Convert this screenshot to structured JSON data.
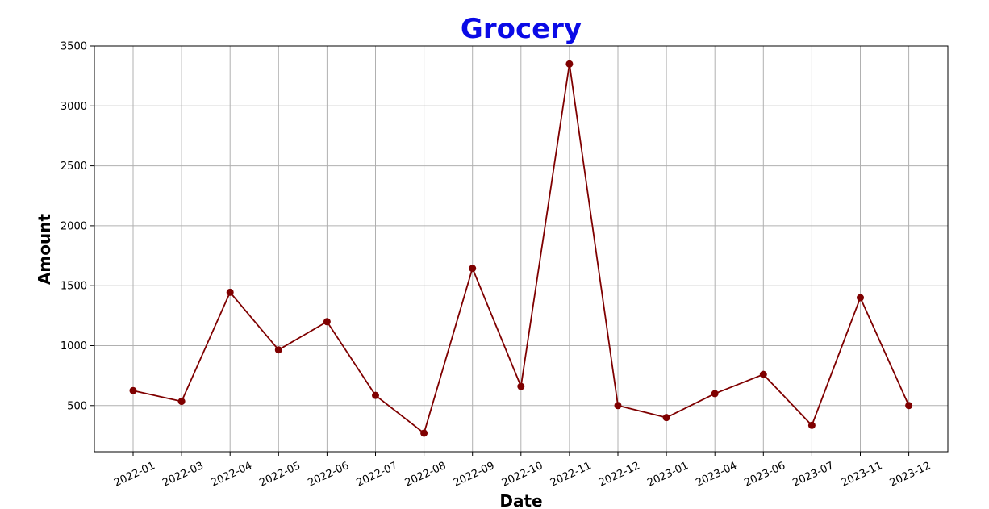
{
  "chart_data": {
    "type": "line",
    "title": "Grocery",
    "xlabel": "Date",
    "ylabel": "Amount",
    "title_color": "#0a0ae6",
    "line_color": "#7f0000",
    "marker": "circle",
    "grid": true,
    "categories": [
      "2022-01",
      "2022-03",
      "2022-04",
      "2022-05",
      "2022-06",
      "2022-07",
      "2022-08",
      "2022-09",
      "2022-10",
      "2022-11",
      "2022-12",
      "2023-01",
      "2023-04",
      "2023-06",
      "2023-07",
      "2023-11",
      "2023-12"
    ],
    "values": [
      625,
      535,
      1445,
      965,
      1200,
      585,
      270,
      1645,
      660,
      3350,
      500,
      400,
      600,
      760,
      335,
      1400,
      500
    ],
    "yticks": [
      500,
      1000,
      1500,
      2000,
      2500,
      3000,
      3500
    ],
    "ylim": [
      115,
      3500
    ]
  }
}
